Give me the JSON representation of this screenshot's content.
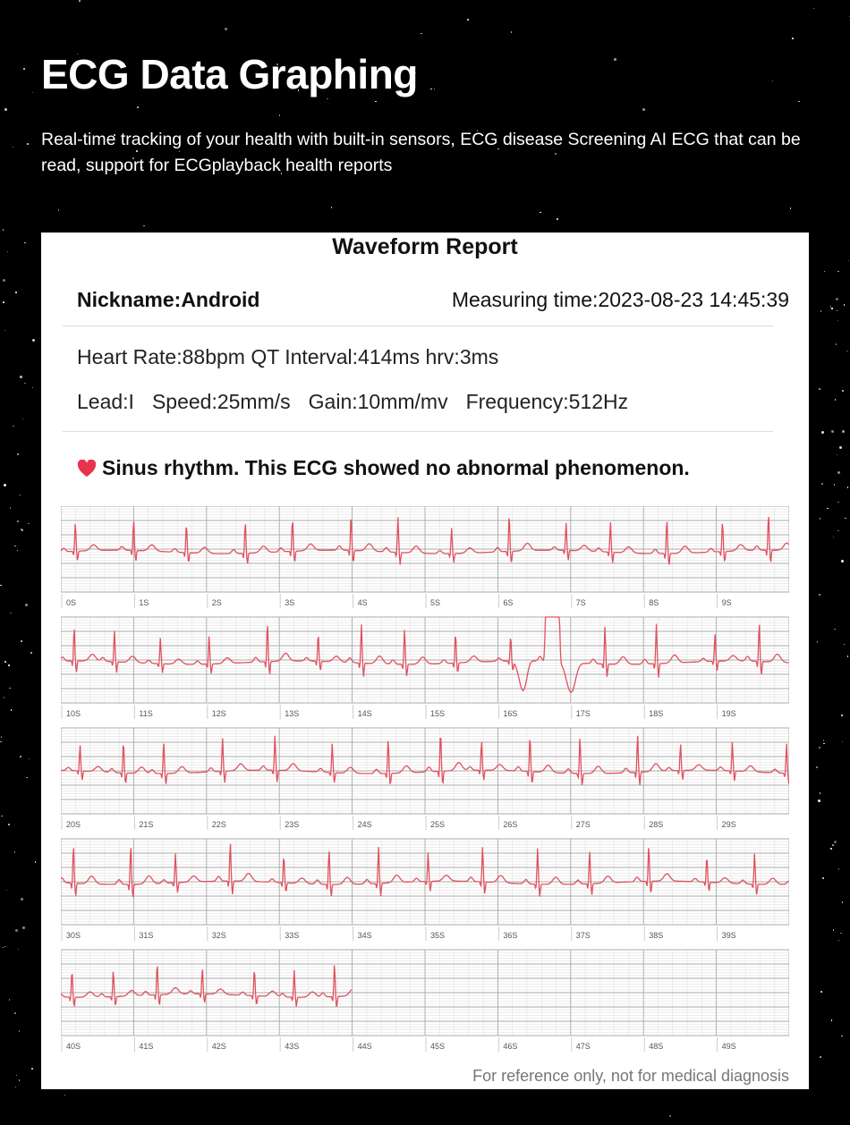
{
  "header": {
    "title": "ECG Data Graphing",
    "subtitle": "Real-time tracking of your health with built-in sensors, ECG disease Screening AI ECG that can be read, support for ECGplayback health reports"
  },
  "report": {
    "title": "Waveform Report",
    "nickname": "Nickname:Android",
    "measuring_time": "Measuring time:2023-08-23 14:45:39",
    "metrics": "Heart Rate:88bpm QT Interval:414ms hrv:3ms",
    "lead": "Lead:I",
    "speed": "Speed:25mm/s",
    "gain": "Gain:10mm/mv",
    "frequency": "Frequency:512Hz",
    "diagnosis": "Sinus rhythm. This ECG showed no abnormal phenomenon.",
    "diagnosis_icon": "heart-icon",
    "footer": "For reference only, not for medical diagnosis"
  },
  "colors": {
    "trace": "#e0525e",
    "grid_major": "#a9a9a9",
    "grid_minor": "#e2e2e2",
    "heart": "#e8344e"
  },
  "chart_data": {
    "type": "line",
    "heart_rate_bpm": 88,
    "strips": [
      {
        "ticks": [
          "0S",
          "1S",
          "2S",
          "3S",
          "4S",
          "5S",
          "6S",
          "7S",
          "8S",
          "9S"
        ]
      },
      {
        "ticks": [
          "10S",
          "11S",
          "12S",
          "13S",
          "14S",
          "15S",
          "16S",
          "17S",
          "18S",
          "19S"
        ]
      },
      {
        "ticks": [
          "20S",
          "21S",
          "22S",
          "23S",
          "24S",
          "25S",
          "26S",
          "27S",
          "28S",
          "29S"
        ]
      },
      {
        "ticks": [
          "30S",
          "31S",
          "32S",
          "33S",
          "34S",
          "35S",
          "36S",
          "37S",
          "38S",
          "39S"
        ]
      },
      {
        "ticks": [
          "40S",
          "41S",
          "42S",
          "43S",
          "44S",
          "45S",
          "46S",
          "47S",
          "48S",
          "49S"
        ]
      }
    ]
  }
}
